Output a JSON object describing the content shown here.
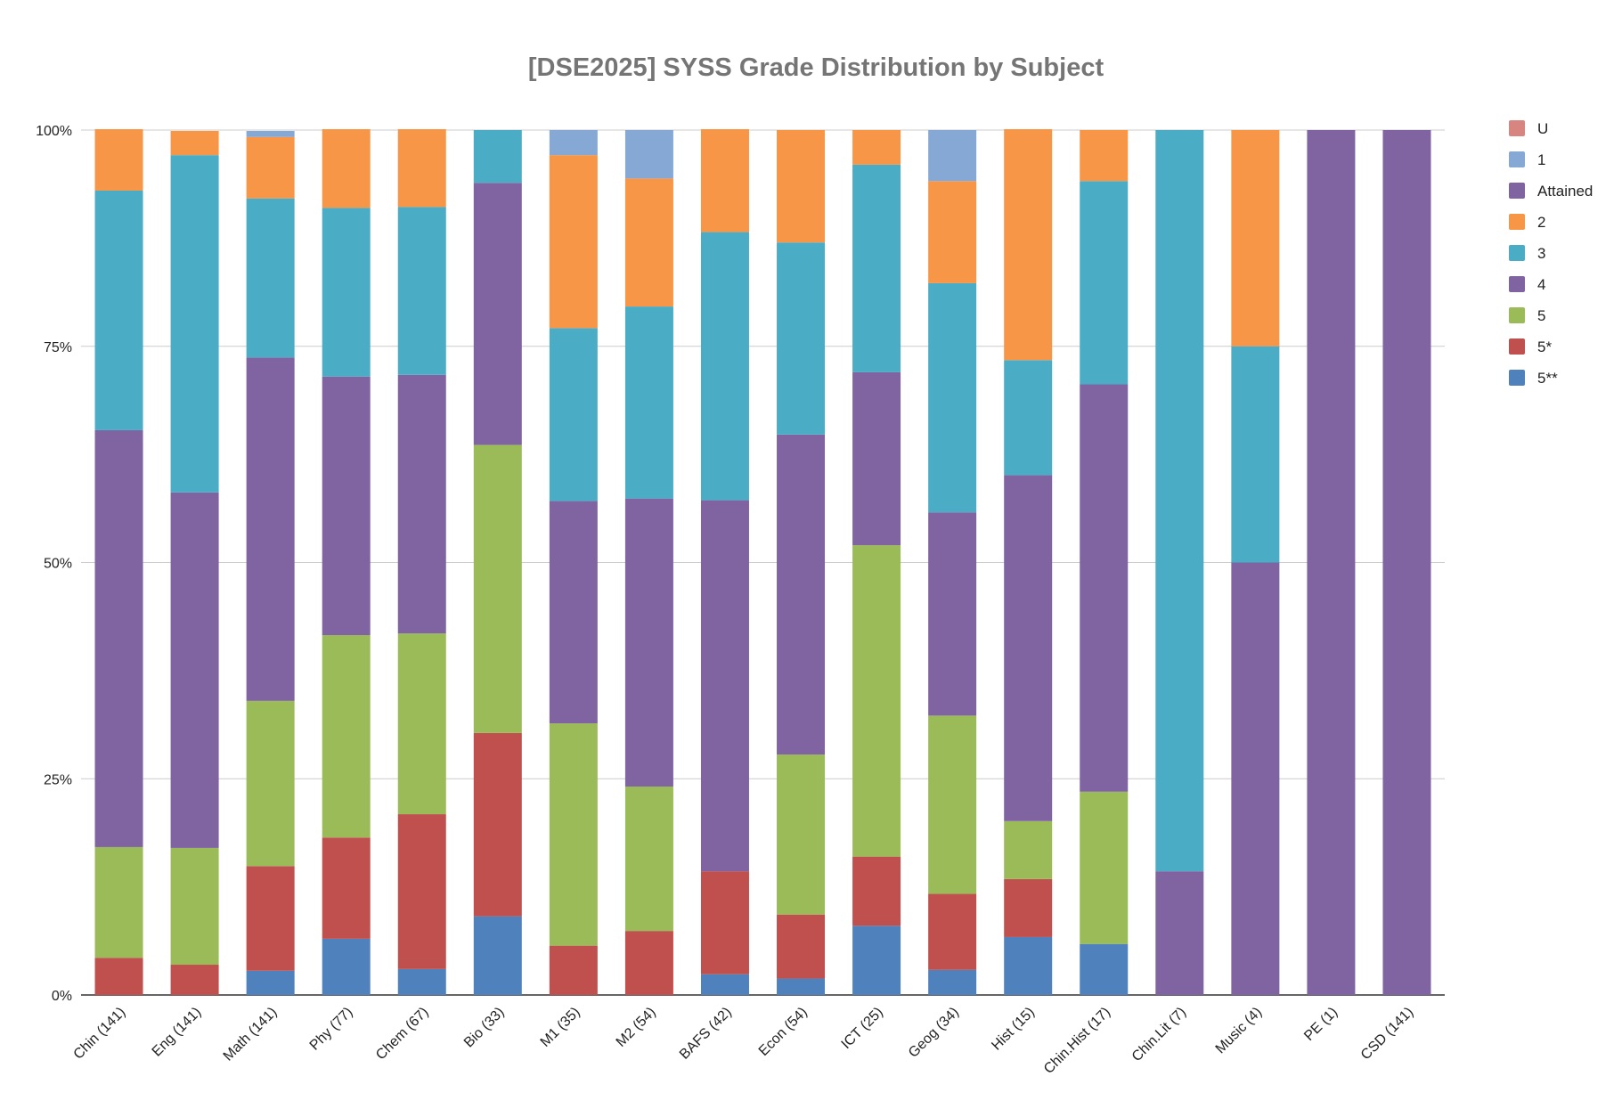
{
  "chart_data": {
    "type": "bar",
    "stacked": true,
    "normalized": true,
    "title": "[DSE2025] SYSS Grade Distribution by Subject",
    "xlabel": "",
    "ylabel": "",
    "ylim": [
      0,
      100
    ],
    "yticks": [
      "0%",
      "25%",
      "50%",
      "75%",
      "100%"
    ],
    "grid": true,
    "legend_position": "right",
    "categories": [
      "Chin (141)",
      "Eng (141)",
      "Math (141)",
      "Phy (77)",
      "Chem (67)",
      "Bio (33)",
      "M1 (35)",
      "M2 (54)",
      "BAFS (42)",
      "Econ (54)",
      "ICT (25)",
      "Geog (34)",
      "Hist (15)",
      "Chin.Hist (17)",
      "Chin.Lit (7)",
      "Music (4)",
      "PE (1)",
      "CSD (141)"
    ],
    "series": [
      {
        "name": "5**",
        "color": "#4f81bd",
        "values": [
          0,
          0,
          2.8,
          6.5,
          3.0,
          9.1,
          0,
          0,
          2.4,
          1.9,
          8,
          2.9,
          6.7,
          5.9,
          0,
          0,
          0,
          0
        ]
      },
      {
        "name": "5*",
        "color": "#c0504d",
        "values": [
          4.3,
          3.5,
          12.1,
          11.7,
          17.9,
          21.2,
          5.7,
          7.4,
          11.9,
          7.4,
          8,
          8.8,
          6.7,
          0,
          0,
          0,
          0,
          0
        ]
      },
      {
        "name": "5",
        "color": "#9bbb59",
        "values": [
          12.8,
          13.5,
          19.1,
          23.4,
          20.9,
          33.3,
          25.7,
          16.7,
          0,
          18.5,
          36,
          20.6,
          6.7,
          17.6,
          0,
          0,
          0,
          0
        ]
      },
      {
        "name": "4",
        "color": "#8064a2",
        "values": [
          48.2,
          41.1,
          39.7,
          29.9,
          29.9,
          30.3,
          25.7,
          33.3,
          42.9,
          37.0,
          20,
          23.5,
          40.0,
          47.1,
          14.3,
          50,
          0,
          0
        ]
      },
      {
        "name": "3",
        "color": "#4bacc6",
        "values": [
          27.7,
          39.0,
          18.4,
          19.5,
          19.4,
          6.1,
          20.0,
          22.2,
          31.0,
          22.2,
          24,
          26.5,
          13.3,
          23.5,
          85.7,
          25,
          0,
          0
        ]
      },
      {
        "name": "2",
        "color": "#f79646",
        "values": [
          7.1,
          2.8,
          7.1,
          9.1,
          9.0,
          0,
          20.0,
          14.8,
          11.9,
          13.0,
          4,
          11.8,
          26.7,
          5.9,
          0,
          25,
          0,
          0
        ]
      },
      {
        "name": "Attained",
        "color": "#8064a2",
        "values": [
          0,
          0,
          0,
          0,
          0,
          0,
          0,
          0,
          0,
          0,
          0,
          0,
          0,
          0,
          0,
          0,
          100,
          100
        ]
      },
      {
        "name": "1",
        "color": "#86a8d4",
        "values": [
          0,
          0,
          0.7,
          0,
          0,
          0,
          2.9,
          5.6,
          0,
          0,
          0,
          5.9,
          0,
          0,
          0,
          0,
          0,
          0
        ]
      },
      {
        "name": "U",
        "color": "#d88582",
        "values": [
          0,
          0,
          0,
          0,
          0,
          0,
          0,
          0,
          0,
          0,
          0,
          0,
          0,
          0,
          0,
          0,
          0,
          0
        ]
      }
    ],
    "legend_order": [
      "U",
      "1",
      "Attained",
      "2",
      "3",
      "4",
      "5",
      "5*",
      "5**"
    ]
  }
}
